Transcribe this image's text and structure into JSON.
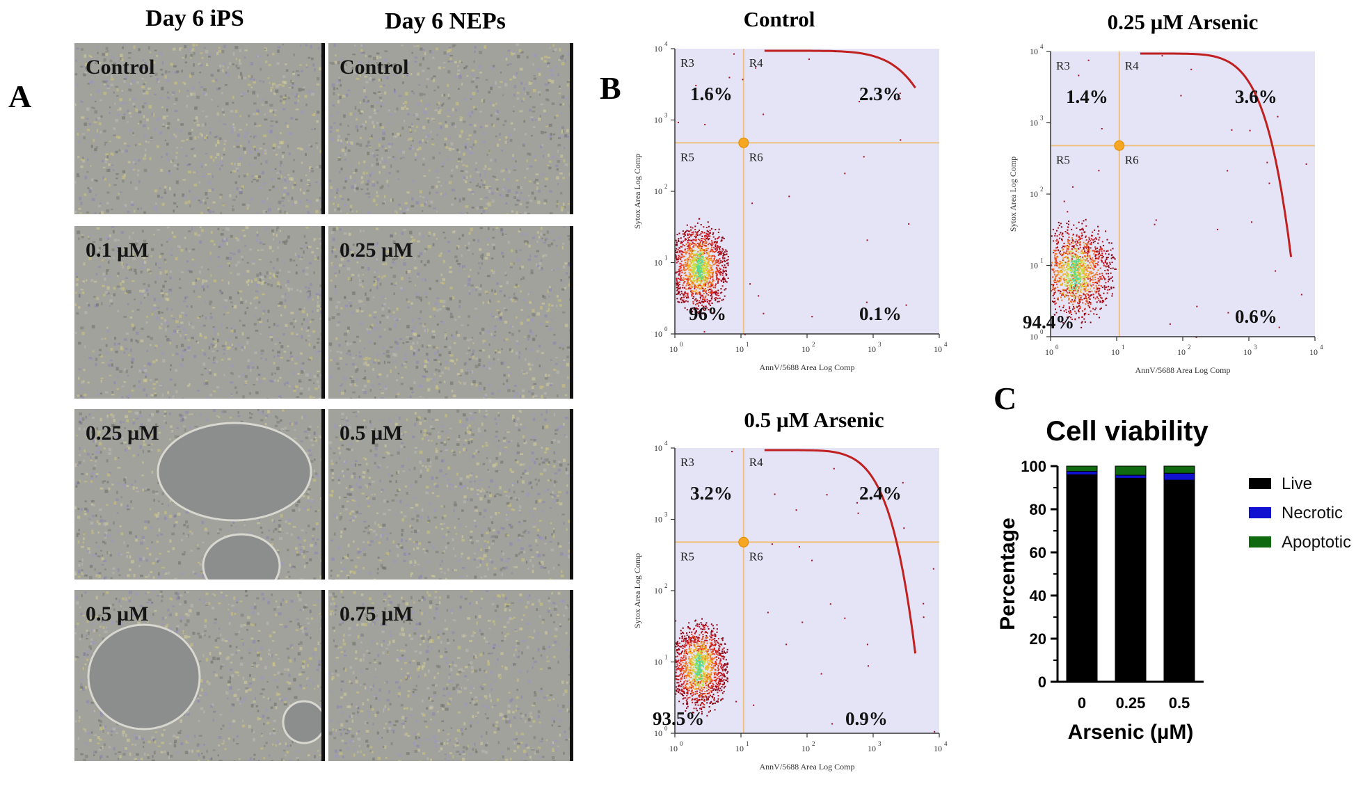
{
  "panel_a": {
    "letter": "A",
    "columns": [
      {
        "title": "Day 6 iPS",
        "labels": [
          "Control",
          "0.1 µM",
          "0.25 µM",
          "0.5 µM"
        ]
      },
      {
        "title": "Day 6 NEPs",
        "labels": [
          "Control",
          "0.25 µM",
          "0.5 µM",
          "0.75 µM"
        ]
      }
    ]
  },
  "panel_b": {
    "letter": "B",
    "plots": [
      {
        "title": "Control",
        "regions": [
          "R3",
          "R4",
          "R5",
          "R6"
        ],
        "quadrants": {
          "top_left": "1.6%",
          "top_right": "2.3%",
          "bottom_left": "96%",
          "bottom_right": "0.1%"
        },
        "xlabel": "AnnV/5688 Area Log Comp",
        "ylabel": "Sytox Area Log Comp"
      },
      {
        "title": "0.25 µM Arsenic",
        "regions": [
          "R3",
          "R4",
          "R5",
          "R6"
        ],
        "quadrants": {
          "top_left": "1.4%",
          "top_right": "3.6%",
          "bottom_left": "94.4%",
          "bottom_right": "0.6%"
        },
        "xlabel": "AnnV/5688 Area Log Comp",
        "ylabel": "Sytox Area Log Comp"
      },
      {
        "title": "0.5 µM Arsenic",
        "regions": [
          "R3",
          "R4",
          "R5",
          "R6"
        ],
        "quadrants": {
          "top_left": "3.2%",
          "top_right": "2.4%",
          "bottom_left": "93.5%",
          "bottom_right": "0.9%"
        },
        "xlabel": "AnnV/5688 Area Log Comp",
        "ylabel": "Sytox Area Log Comp"
      }
    ],
    "ticks": [
      "10",
      "10",
      "10",
      "10",
      "10"
    ],
    "tick_exponents": [
      "0",
      "1",
      "2",
      "3",
      "4"
    ]
  },
  "panel_c": {
    "letter": "C",
    "chart_data": {
      "type": "bar",
      "stacked": true,
      "title": "Cell viability",
      "xlabel": "Arsenic (µM)",
      "ylabel": "Percentage",
      "categories": [
        "0",
        "0.25",
        "0.5"
      ],
      "ylim": [
        0,
        100
      ],
      "yticks": [
        "0",
        "20",
        "40",
        "60",
        "80",
        "100"
      ],
      "series": [
        {
          "name": "Live",
          "color": "#000000",
          "values": [
            96,
            94.4,
            93.5
          ]
        },
        {
          "name": "Necrotic",
          "color": "#1010d0",
          "values": [
            1.6,
            1.4,
            3.2
          ]
        },
        {
          "name": "Apoptotic",
          "color": "#0f6a10",
          "values": [
            2.4,
            4.2,
            3.3
          ]
        }
      ]
    }
  }
}
